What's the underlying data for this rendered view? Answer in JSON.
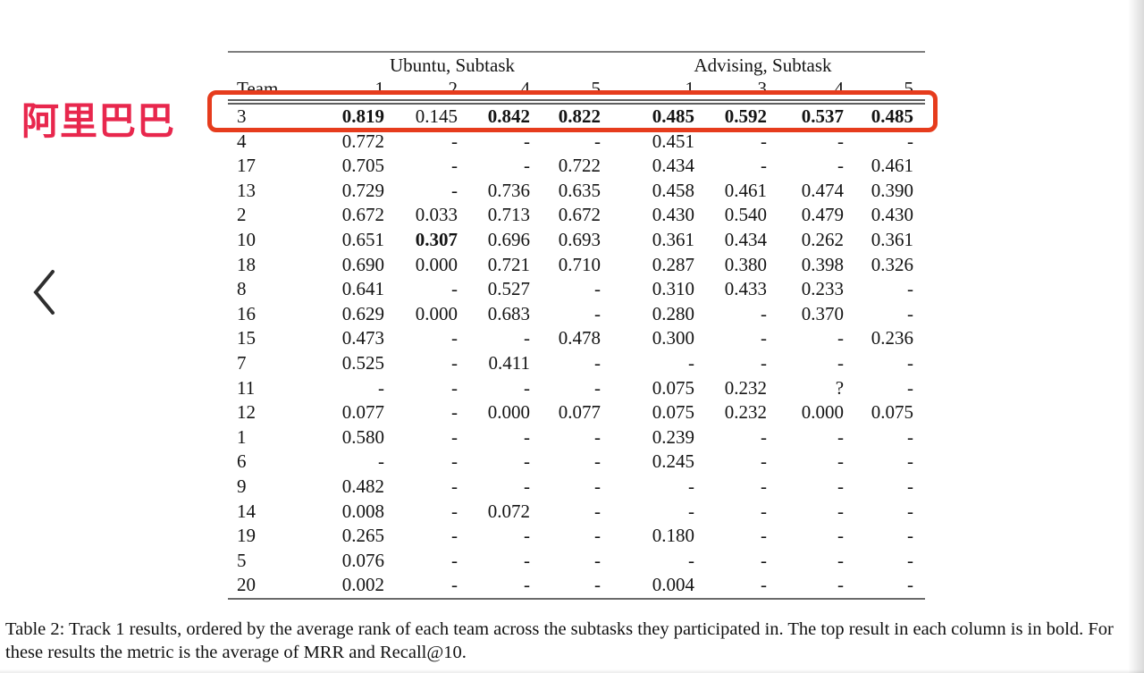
{
  "annotation": {
    "label_text": "阿里巴巴",
    "label_color": "#e8274d",
    "box_color": "#e63c1d"
  },
  "viewer": {
    "back_chevron_icon": "‹"
  },
  "table": {
    "group_headers": [
      {
        "label": "Ubuntu, Subtask",
        "span": 4
      },
      {
        "label": "Advising, Subtask",
        "span": 4
      }
    ],
    "team_header": "Team",
    "subtask_headers": [
      "1",
      "2",
      "4",
      "5",
      "1",
      "3",
      "4",
      "5"
    ],
    "rows": [
      {
        "team": "3",
        "values": [
          "0.819",
          "0.145",
          "0.842",
          "0.822",
          "0.485",
          "0.592",
          "0.537",
          "0.485"
        ],
        "bold": [
          true,
          false,
          true,
          true,
          true,
          true,
          true,
          true
        ],
        "highlighted": true
      },
      {
        "team": "4",
        "values": [
          "0.772",
          "-",
          "-",
          "-",
          "0.451",
          "-",
          "-",
          "-"
        ]
      },
      {
        "team": "17",
        "values": [
          "0.705",
          "-",
          "-",
          "0.722",
          "0.434",
          "-",
          "-",
          "0.461"
        ]
      },
      {
        "team": "13",
        "values": [
          "0.729",
          "-",
          "0.736",
          "0.635",
          "0.458",
          "0.461",
          "0.474",
          "0.390"
        ]
      },
      {
        "team": "2",
        "values": [
          "0.672",
          "0.033",
          "0.713",
          "0.672",
          "0.430",
          "0.540",
          "0.479",
          "0.430"
        ]
      },
      {
        "team": "10",
        "values": [
          "0.651",
          "0.307",
          "0.696",
          "0.693",
          "0.361",
          "0.434",
          "0.262",
          "0.361"
        ],
        "bold": [
          false,
          true,
          false,
          false,
          false,
          false,
          false,
          false
        ]
      },
      {
        "team": "18",
        "values": [
          "0.690",
          "0.000",
          "0.721",
          "0.710",
          "0.287",
          "0.380",
          "0.398",
          "0.326"
        ]
      },
      {
        "team": "8",
        "values": [
          "0.641",
          "-",
          "0.527",
          "-",
          "0.310",
          "0.433",
          "0.233",
          "-"
        ]
      },
      {
        "team": "16",
        "values": [
          "0.629",
          "0.000",
          "0.683",
          "-",
          "0.280",
          "-",
          "0.370",
          "-"
        ]
      },
      {
        "team": "15",
        "values": [
          "0.473",
          "-",
          "-",
          "0.478",
          "0.300",
          "-",
          "-",
          "0.236"
        ]
      },
      {
        "team": "7",
        "values": [
          "0.525",
          "-",
          "0.411",
          "-",
          "-",
          "-",
          "-",
          "-"
        ]
      },
      {
        "team": "11",
        "values": [
          "-",
          "-",
          "-",
          "-",
          "0.075",
          "0.232",
          "?",
          "-"
        ]
      },
      {
        "team": "12",
        "values": [
          "0.077",
          "-",
          "0.000",
          "0.077",
          "0.075",
          "0.232",
          "0.000",
          "0.075"
        ]
      },
      {
        "team": "1",
        "values": [
          "0.580",
          "-",
          "-",
          "-",
          "0.239",
          "-",
          "-",
          "-"
        ]
      },
      {
        "team": "6",
        "values": [
          "-",
          "-",
          "-",
          "-",
          "0.245",
          "-",
          "-",
          "-"
        ]
      },
      {
        "team": "9",
        "values": [
          "0.482",
          "-",
          "-",
          "-",
          "-",
          "-",
          "-",
          "-"
        ]
      },
      {
        "team": "14",
        "values": [
          "0.008",
          "-",
          "0.072",
          "-",
          "-",
          "-",
          "-",
          "-"
        ]
      },
      {
        "team": "19",
        "values": [
          "0.265",
          "-",
          "-",
          "-",
          "0.180",
          "-",
          "-",
          "-"
        ]
      },
      {
        "team": "5",
        "values": [
          "0.076",
          "-",
          "-",
          "-",
          "-",
          "-",
          "-",
          "-"
        ]
      },
      {
        "team": "20",
        "values": [
          "0.002",
          "-",
          "-",
          "-",
          "0.004",
          "-",
          "-",
          "-"
        ]
      }
    ]
  },
  "caption": "Table 2:  Track 1 results, ordered by the average rank of each team across the subtasks they participated in. The top result in each column is in bold. For these results the metric is the average of MRR and Recall@10."
}
